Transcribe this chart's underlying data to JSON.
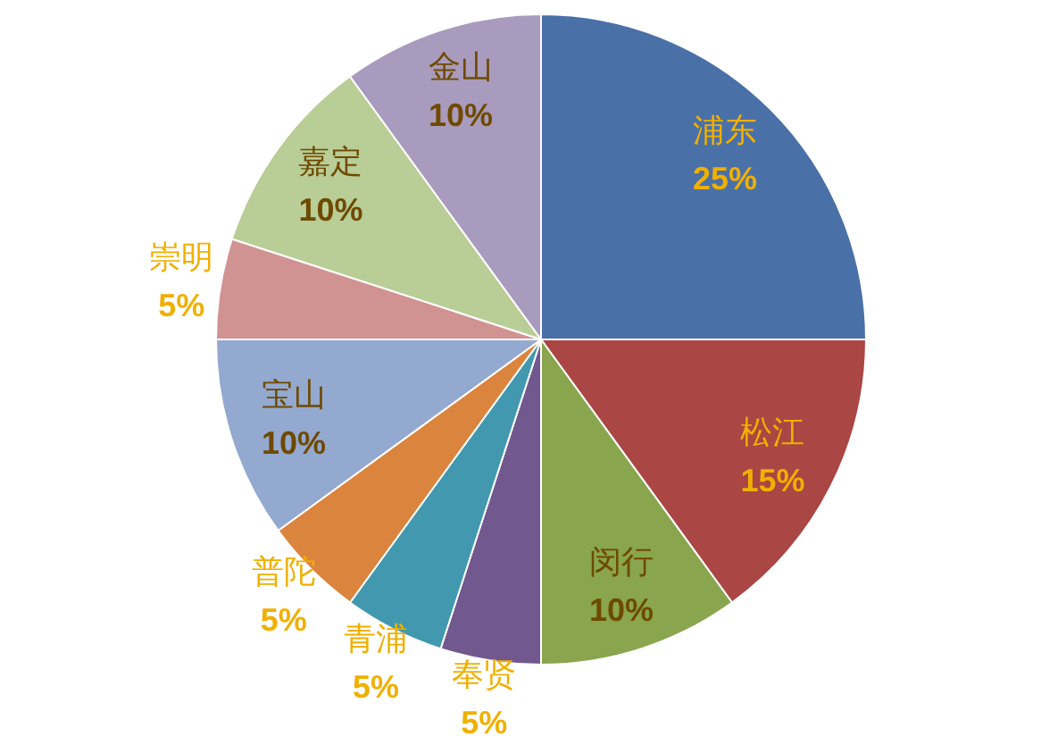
{
  "chart_data": {
    "type": "pie",
    "categories": [
      "浦东",
      "松江",
      "闵行",
      "奉贤",
      "青浦",
      "普陀",
      "宝山",
      "崇明",
      "嘉定",
      "金山"
    ],
    "values": [
      25,
      15,
      10,
      5,
      5,
      5,
      10,
      5,
      10,
      10
    ],
    "colors": [
      "#4a70a8",
      "#aa4644",
      "#89a54e",
      "#71588f",
      "#4198af",
      "#db843d",
      "#93a9cf",
      "#d19392",
      "#b9cd96",
      "#a99bbd"
    ],
    "value_labels": [
      "25%",
      "15%",
      "10%",
      "5%",
      "5%",
      "5%",
      "10%",
      "5%",
      "10%",
      "10%"
    ]
  }
}
